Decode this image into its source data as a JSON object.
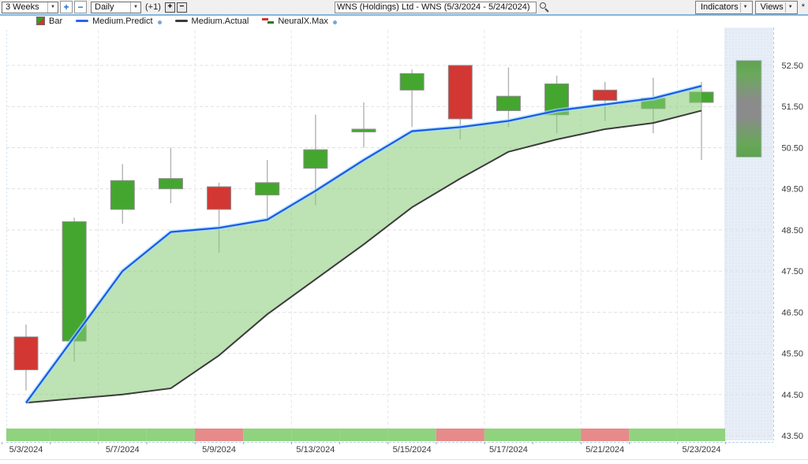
{
  "toolbar": {
    "range": "3 Weeks",
    "zoom_in": "+",
    "zoom_out": "−",
    "period": "Daily",
    "offset": "(+1)",
    "offset_plus": "+",
    "offset_minus": "−",
    "symbol_query": "WNS (Holdings) Ltd - WNS (5/3/2024 - 5/24/2024)",
    "indicators": "Indicators",
    "views": "Views",
    "modified": "*"
  },
  "legend": {
    "bar": "Bar",
    "predict": "Medium.Predict",
    "actual": "Medium.Actual",
    "neuralx": "NeuralX.Max"
  },
  "colors": {
    "up": "#44a62f",
    "down": "#d23733",
    "band": "#86ca76",
    "predict_glow": "#a9e2f6",
    "strip_up": "#90d37f",
    "strip_down": "#e68a8a",
    "panel": "#e8eef7",
    "grid": "#e0e0e0",
    "axis_text": "#3a3a3a"
  },
  "chart_data": {
    "type": "candlestick",
    "symbol": "WNS (Holdings) Ltd - WNS",
    "date_range": "5/3/2024 - 5/24/2024",
    "ylim": [
      43.5,
      52.5
    ],
    "y_ticks": [
      "52.50",
      "51.50",
      "50.50",
      "49.50",
      "48.50",
      "47.50",
      "46.50",
      "45.50",
      "44.50",
      "43.50"
    ],
    "x_ticks": [
      {
        "index": 0,
        "label": "5/3/2024"
      },
      {
        "index": 2,
        "label": "5/7/2024"
      },
      {
        "index": 4,
        "label": "5/9/2024"
      },
      {
        "index": 6,
        "label": "5/13/2024"
      },
      {
        "index": 8,
        "label": "5/15/2024"
      },
      {
        "index": 10,
        "label": "5/17/2024"
      },
      {
        "index": 12,
        "label": "5/21/2024"
      },
      {
        "index": 14,
        "label": "5/23/2024"
      }
    ],
    "candles": [
      {
        "date": "5/3/2024",
        "ohlc": [
          45.9,
          46.2,
          44.6,
          45.1
        ]
      },
      {
        "date": "5/6/2024",
        "ohlc": [
          45.8,
          48.8,
          45.3,
          48.7
        ]
      },
      {
        "date": "5/7/2024",
        "ohlc": [
          49.0,
          50.1,
          48.65,
          49.7
        ]
      },
      {
        "date": "5/8/2024",
        "ohlc": [
          49.5,
          50.5,
          49.15,
          49.75
        ]
      },
      {
        "date": "5/9/2024",
        "ohlc": [
          49.55,
          49.65,
          47.95,
          49.0
        ]
      },
      {
        "date": "5/10/2024",
        "ohlc": [
          49.35,
          50.2,
          48.7,
          49.65
        ]
      },
      {
        "date": "5/13/2024",
        "ohlc": [
          50.0,
          51.3,
          49.1,
          50.45
        ]
      },
      {
        "date": "5/14/2024",
        "ohlc": [
          50.9,
          51.6,
          50.5,
          50.95
        ]
      },
      {
        "date": "5/15/2024",
        "ohlc": [
          51.9,
          52.4,
          51.0,
          52.3
        ]
      },
      {
        "date": "5/16/2024",
        "ohlc": [
          52.5,
          52.5,
          50.7,
          51.2
        ]
      },
      {
        "date": "5/17/2024",
        "ohlc": [
          51.4,
          52.45,
          51.0,
          51.75
        ]
      },
      {
        "date": "5/20/2024",
        "ohlc": [
          51.3,
          52.25,
          50.85,
          52.05
        ]
      },
      {
        "date": "5/21/2024",
        "ohlc": [
          51.9,
          52.1,
          51.15,
          51.65
        ]
      },
      {
        "date": "5/22/2024",
        "ohlc": [
          51.45,
          52.2,
          50.85,
          51.7
        ]
      },
      {
        "date": "5/23/2024",
        "ohlc": [
          51.6,
          52.1,
          50.2,
          51.85
        ]
      }
    ],
    "series_predict": {
      "name": "Medium.Predict",
      "color": "#1d5be8",
      "values": [
        44.3,
        45.9,
        47.5,
        48.45,
        48.55,
        48.75,
        49.45,
        50.2,
        50.9,
        51.0,
        51.15,
        51.4,
        51.55,
        51.7,
        52.0
      ]
    },
    "series_actual": {
      "name": "Medium.Actual",
      "color": "#3b3b3b",
      "values": [
        44.3,
        44.4,
        44.5,
        44.65,
        45.45,
        46.45,
        47.3,
        48.15,
        49.05,
        49.75,
        50.4,
        50.7,
        50.95,
        51.1,
        51.4
      ]
    },
    "neuralx_strip": [
      "up",
      "up",
      "up",
      "up",
      "down",
      "up",
      "up",
      "up",
      "up",
      "down",
      "up",
      "up",
      "down",
      "up",
      "up"
    ],
    "neuralx_bar": {
      "high": 52.62,
      "low": 50.27,
      "gradient": [
        [
          "0%",
          "#5ea24f"
        ],
        [
          "14%",
          "#6aa95b"
        ],
        [
          "42%",
          "#8b8b8b"
        ],
        [
          "58%",
          "#8b8b8b"
        ],
        [
          "86%",
          "#68a759"
        ],
        [
          "100%",
          "#5ea24f"
        ]
      ]
    }
  }
}
